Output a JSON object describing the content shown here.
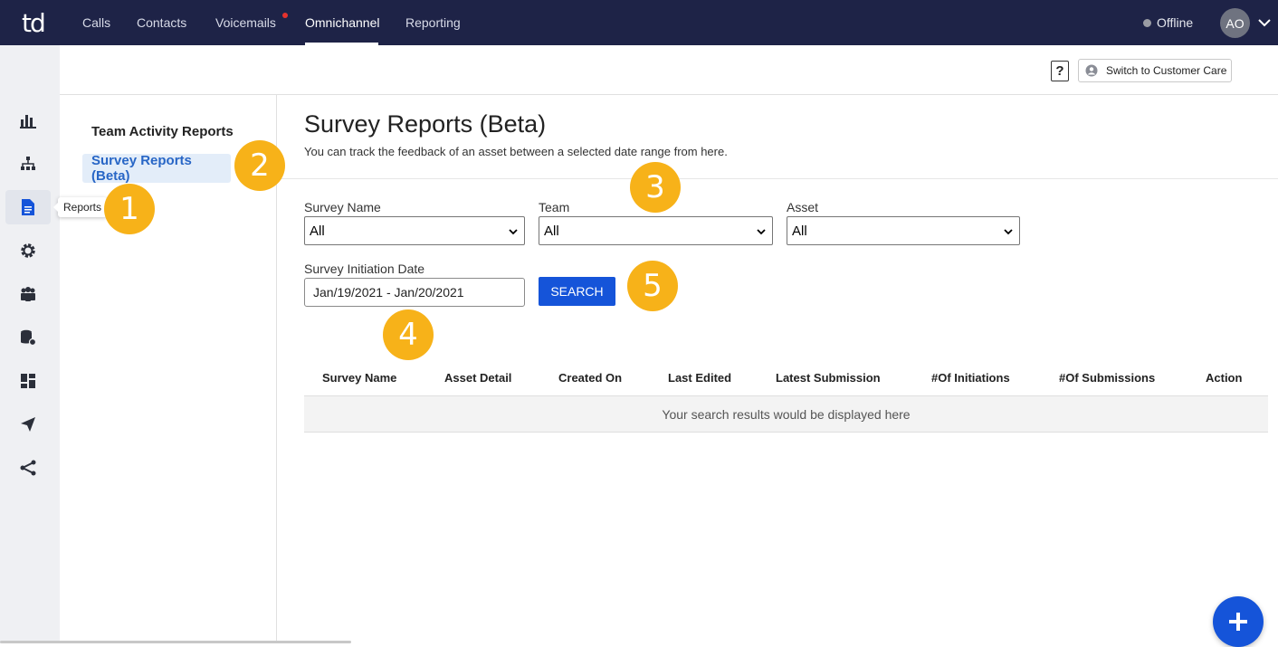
{
  "app": {
    "logo_text": "td",
    "nav": [
      {
        "label": "Calls"
      },
      {
        "label": "Contacts"
      },
      {
        "label": "Voicemails"
      },
      {
        "label": "Omnichannel"
      },
      {
        "label": "Reporting"
      }
    ],
    "status_label": "Offline",
    "avatar_initials": "AO"
  },
  "rail": {
    "tooltip": "Reports",
    "icons": [
      "bar-chart-icon",
      "org-chart-icon",
      "document-icon",
      "gear-icon",
      "people-icon",
      "database-icon",
      "dashboard-icon",
      "send-icon",
      "share-icon"
    ]
  },
  "utility": {
    "help_label": "?",
    "switch_label": "Switch to Customer Care"
  },
  "sidebar": {
    "items": [
      {
        "label": "Team Activity Reports"
      },
      {
        "label": "Survey Reports (Beta)"
      }
    ]
  },
  "main": {
    "title": "Survey Reports (Beta)",
    "subtitle": "You can track the feedback of an asset between a selected date range from here.",
    "filters": {
      "survey_name_label": "Survey Name",
      "survey_name_value": "All",
      "team_label": "Team",
      "team_value": "All",
      "asset_label": "Asset",
      "asset_value": "All",
      "date_label": "Survey Initiation Date",
      "date_value": "Jan/19/2021 - Jan/20/2021",
      "search_label": "SEARCH"
    },
    "table": {
      "columns": [
        "Survey Name",
        "Asset Detail",
        "Created On",
        "Last Edited",
        "Latest Submission",
        "#Of Initiations",
        "#Of Submissions",
        "Action"
      ],
      "empty_text": "Your search results would be displayed here"
    }
  },
  "callouts": [
    "1",
    "2",
    "3",
    "4",
    "5"
  ],
  "colors": {
    "nav_bg": "#1e2347",
    "accent": "#1554d9",
    "callout": "#f7b219",
    "active_item_bg": "#e3edf9"
  }
}
